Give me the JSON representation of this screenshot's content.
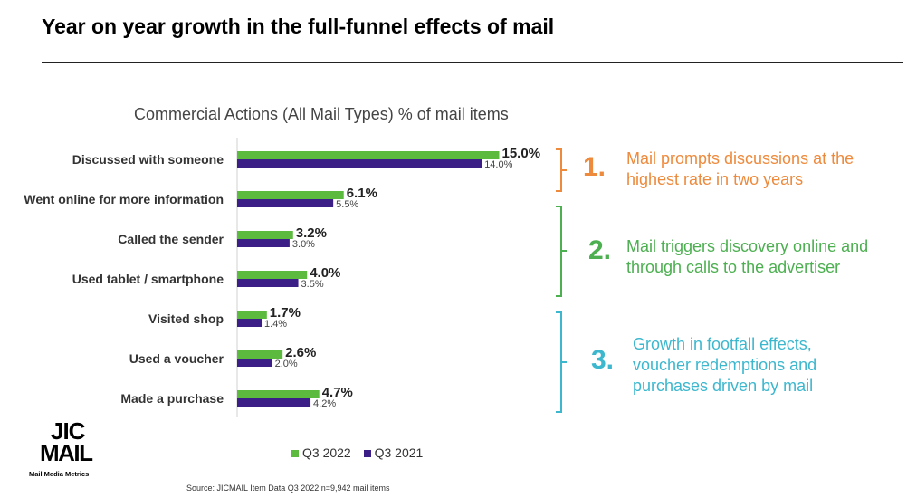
{
  "header": {
    "title": "Year on year growth in the full-funnel effects of mail"
  },
  "chart_data": {
    "type": "bar",
    "orientation": "horizontal",
    "title": "Commercial Actions (All Mail Types) % of mail items",
    "categories": [
      "Discussed with someone",
      "Went online for more information",
      "Called the sender",
      "Used tablet / smartphone",
      "Visited shop",
      "Used a voucher",
      "Made a purchase"
    ],
    "series": [
      {
        "name": "Q3 2022",
        "color": "#5CBB3F",
        "values": [
          15.0,
          6.1,
          3.2,
          4.0,
          1.7,
          2.6,
          4.7
        ],
        "labels": [
          "15.0%",
          "6.1%",
          "3.2%",
          "4.0%",
          "1.7%",
          "2.6%",
          "4.7%"
        ]
      },
      {
        "name": "Q3 2021",
        "color": "#3B1F86",
        "values": [
          14.0,
          5.5,
          3.0,
          3.5,
          1.4,
          2.0,
          4.2
        ],
        "labels": [
          "14.0%",
          "5.5%",
          "3.0%",
          "3.5%",
          "1.4%",
          "2.0%",
          "4.2%"
        ]
      }
    ],
    "xlim": [
      0,
      15
    ],
    "grid": false,
    "legend_position": "bottom"
  },
  "annotations": [
    {
      "number": "1.",
      "lines": [
        "Mail prompts discussions at the",
        "highest rate in two years"
      ],
      "color": "#EE8A3C"
    },
    {
      "number": "2.",
      "lines": [
        "Mail triggers discovery online and",
        "through calls to the advertiser"
      ],
      "color": "#4CAF50"
    },
    {
      "number": "3.",
      "lines": [
        "Growth in footfall effects,",
        "voucher redemptions and",
        "purchases driven by mail"
      ],
      "color": "#3CB7CE"
    }
  ],
  "legend": {
    "items": [
      "Q3 2022",
      "Q3 2021"
    ]
  },
  "logo": {
    "text": "JICMAIL",
    "tagline": "Mail Media Metrics"
  },
  "source": "Source: JICMAIL Item Data Q3 2022 n=9,942 mail items"
}
